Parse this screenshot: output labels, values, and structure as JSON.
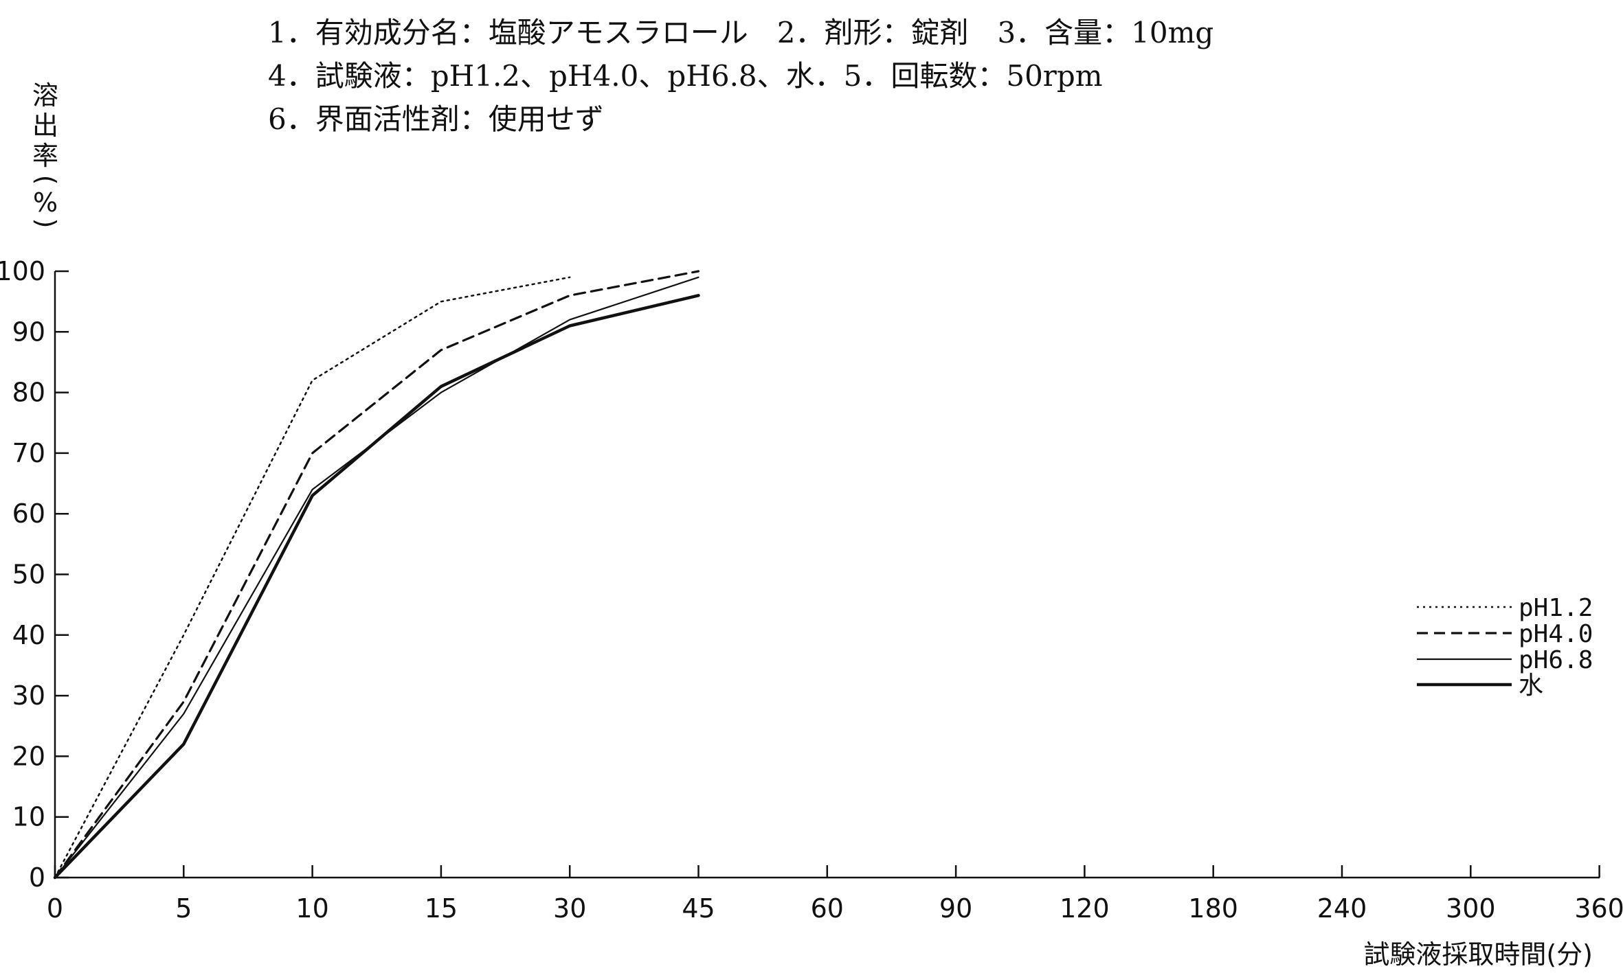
{
  "chart_data": {
    "type": "line",
    "header": {
      "line1": "1．有効成分名：塩酸アモスラロール　2．剤形：錠剤　3．含量：10mg",
      "line2": "4．試験液：pH1.2、pH4.0、pH6.8、水．5．回転数：50rpm",
      "line3": "6．界面活性剤：使用せず"
    },
    "xlabel": "試験液採取時間(分)",
    "ylabel": [
      "溶",
      "出",
      "率",
      "(",
      "%",
      ")"
    ],
    "x_ticks": [
      "0",
      "5",
      "10",
      "15",
      "30",
      "45",
      "60",
      "90",
      "120",
      "180",
      "240",
      "300",
      "360"
    ],
    "y_ticks": [
      "0",
      "10",
      "20",
      "30",
      "40",
      "50",
      "60",
      "70",
      "80",
      "90",
      "100"
    ],
    "ylim": [
      0,
      100
    ],
    "x_scale": "categorical time points (non-linear)",
    "legend_position": "right",
    "series": [
      {
        "name": "pH1.2",
        "style": "dotted",
        "x": [
          "0",
          "5",
          "10",
          "15",
          "30"
        ],
        "values": [
          0,
          40,
          82,
          95,
          99
        ]
      },
      {
        "name": "pH4.0",
        "style": "dashed",
        "x": [
          "0",
          "5",
          "10",
          "15",
          "30",
          "45"
        ],
        "values": [
          0,
          29,
          70,
          87,
          96,
          100
        ]
      },
      {
        "name": "pH6.8",
        "style": "thin-solid",
        "x": [
          "0",
          "5",
          "10",
          "15",
          "30",
          "45"
        ],
        "values": [
          0,
          27,
          64,
          80,
          92,
          99
        ]
      },
      {
        "name": "水",
        "style": "thick-solid",
        "x": [
          "0",
          "5",
          "10",
          "15",
          "30",
          "45"
        ],
        "values": [
          0,
          22,
          63,
          81,
          91,
          96
        ]
      }
    ]
  }
}
